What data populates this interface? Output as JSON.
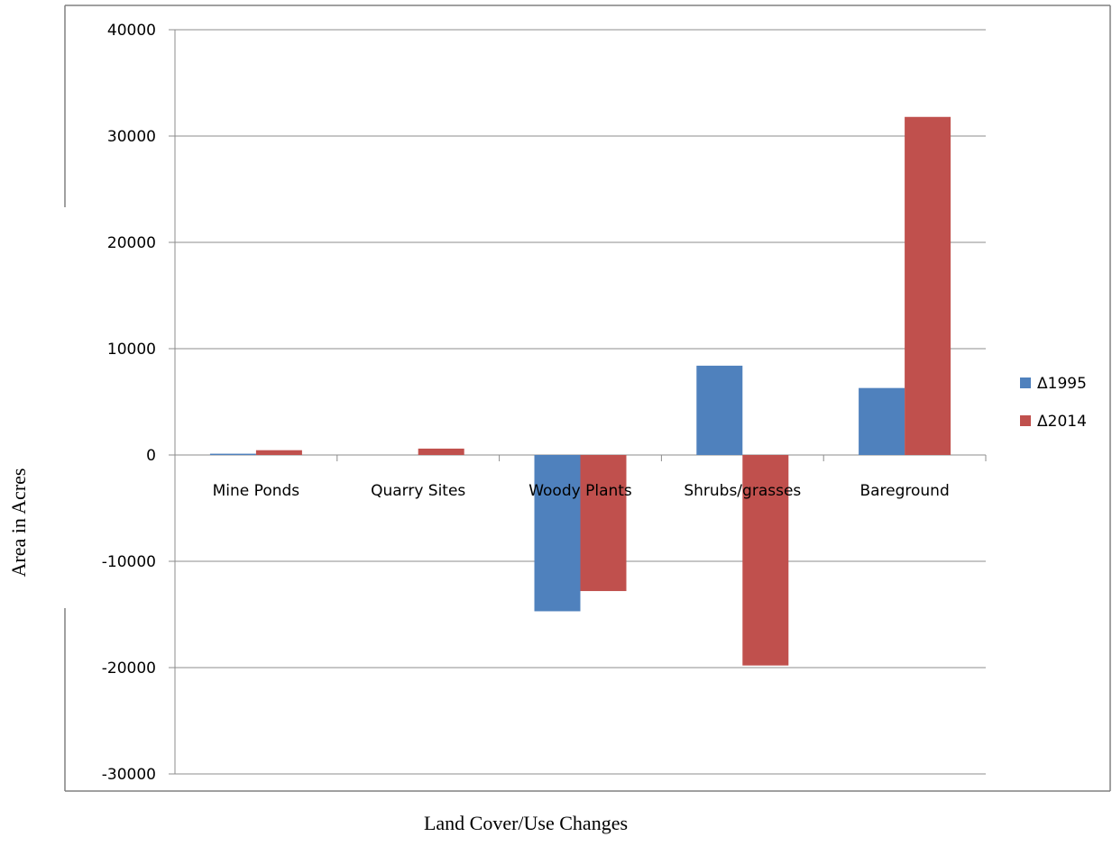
{
  "chart_data": {
    "type": "bar",
    "xlabel": "Land Cover/Use Changes",
    "ylabel": "Area in Acres",
    "categories": [
      "Mine Ponds",
      "Quarry Sites",
      "Woody Plants",
      "Shrubs/grasses",
      "Bareground"
    ],
    "series": [
      {
        "name": "Δ1995",
        "color": "#4f81bd",
        "values": [
          120,
          0,
          -14700,
          8400,
          6300
        ]
      },
      {
        "name": "Δ2014",
        "color": "#c0504d",
        "values": [
          450,
          600,
          -12800,
          -19800,
          31800
        ]
      }
    ],
    "ylim": [
      -30000,
      40000
    ],
    "yticks": [
      40000,
      30000,
      20000,
      10000,
      0,
      -10000,
      -20000,
      -30000
    ],
    "grid": true,
    "legend_position": "right"
  }
}
